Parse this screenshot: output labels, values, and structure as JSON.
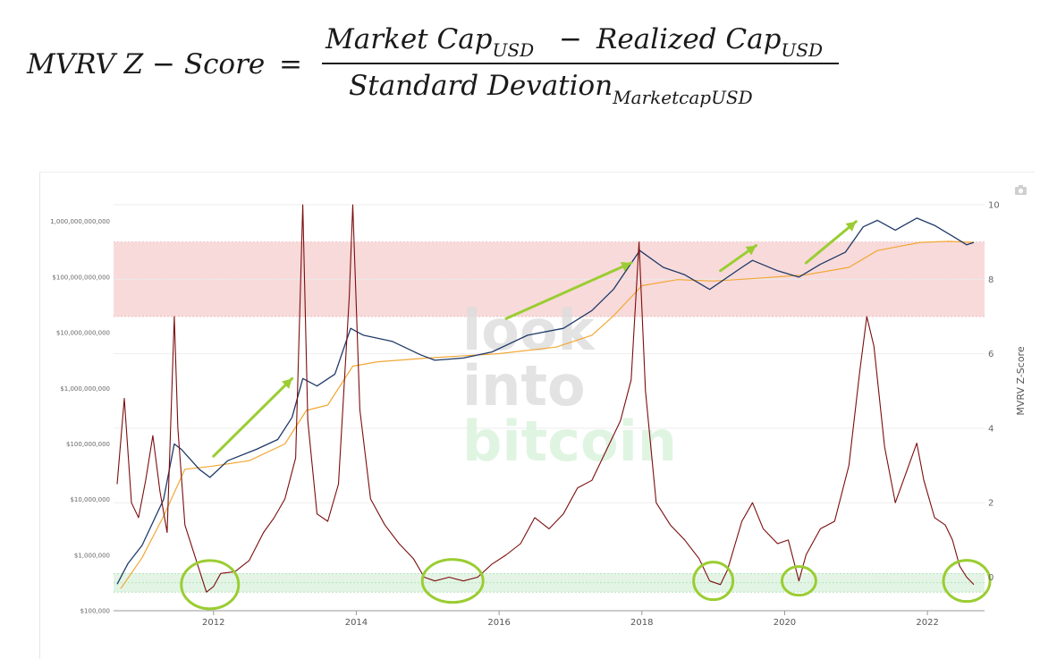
{
  "formula": {
    "lhs": "MVRV Z − Score",
    "equals": "=",
    "num_a": "Market Cap",
    "num_a_sub": "USD",
    "minus": "−",
    "num_b": "Realized Cap",
    "num_b_sub": "USD",
    "den": "Standard Devation",
    "den_sub": "MarketcapUSD"
  },
  "watermark": [
    "look",
    "into",
    "bitcoin"
  ],
  "colors": {
    "market_cap": "#1f3a68",
    "realized_cap": "#f2a735",
    "z_score": "#7b0d0d",
    "red_band": "#f8dada",
    "green_band": "#e2f5e4",
    "annotation": "#9acd32"
  },
  "icons": {
    "camera": "camera-icon"
  },
  "chart_data": {
    "type": "line",
    "title": "",
    "x_ticks": [
      "2012",
      "2014",
      "2016",
      "2018",
      "2020",
      "2022"
    ],
    "x_range": [
      2010.6,
      2022.8
    ],
    "left_axis": {
      "scale": "log",
      "ticks": [
        "1,000,000,000,000",
        "$100,000,000,000",
        "$10,000,000,000",
        "$1,000,000,000",
        "$100,000,000",
        "$10,000,000",
        "$1,000,000",
        "$100,000"
      ],
      "range": [
        100000,
        2000000000000
      ]
    },
    "right_axis": {
      "label": "MVRV Z-Score",
      "ticks": [
        "10",
        "8",
        "6",
        "4",
        "2",
        "0"
      ],
      "range": [
        -0.9,
        10
      ]
    },
    "zones": [
      {
        "name": "red",
        "from": 7,
        "to": 9
      },
      {
        "name": "green",
        "from": -0.4,
        "to": 0.1
      }
    ],
    "series": [
      {
        "key": "market_cap",
        "axis": "left",
        "points": [
          [
            2010.65,
            300000
          ],
          [
            2010.8,
            700000
          ],
          [
            2011.0,
            1500000
          ],
          [
            2011.3,
            10000000
          ],
          [
            2011.45,
            100000000
          ],
          [
            2011.55,
            80000000
          ],
          [
            2011.8,
            35000000
          ],
          [
            2011.95,
            25000000
          ],
          [
            2012.2,
            50000000
          ],
          [
            2012.6,
            80000000
          ],
          [
            2012.9,
            120000000
          ],
          [
            2013.1,
            300000000
          ],
          [
            2013.25,
            1500000000
          ],
          [
            2013.45,
            1100000000
          ],
          [
            2013.7,
            1800000000
          ],
          [
            2013.92,
            12000000000
          ],
          [
            2014.1,
            9000000000
          ],
          [
            2014.5,
            7000000000
          ],
          [
            2014.9,
            4000000000
          ],
          [
            2015.1,
            3200000000
          ],
          [
            2015.5,
            3500000000
          ],
          [
            2015.9,
            4500000000
          ],
          [
            2016.4,
            9000000000
          ],
          [
            2016.9,
            12000000000
          ],
          [
            2017.3,
            25000000000
          ],
          [
            2017.6,
            60000000000
          ],
          [
            2017.97,
            300000000000
          ],
          [
            2018.3,
            150000000000
          ],
          [
            2018.6,
            110000000000
          ],
          [
            2018.95,
            60000000000
          ],
          [
            2019.4,
            150000000000
          ],
          [
            2019.55,
            200000000000
          ],
          [
            2019.9,
            130000000000
          ],
          [
            2020.2,
            100000000000
          ],
          [
            2020.5,
            170000000000
          ],
          [
            2020.85,
            280000000000
          ],
          [
            2021.1,
            800000000000
          ],
          [
            2021.3,
            1050000000000
          ],
          [
            2021.55,
            700000000000
          ],
          [
            2021.85,
            1150000000000
          ],
          [
            2022.1,
            850000000000
          ],
          [
            2022.4,
            500000000000
          ],
          [
            2022.55,
            380000000000
          ],
          [
            2022.65,
            420000000000
          ]
        ]
      },
      {
        "key": "realized_cap",
        "axis": "left",
        "points": [
          [
            2010.7,
            250000
          ],
          [
            2011.0,
            900000
          ],
          [
            2011.3,
            5000000
          ],
          [
            2011.6,
            35000000
          ],
          [
            2012.0,
            40000000
          ],
          [
            2012.5,
            50000000
          ],
          [
            2013.0,
            100000000
          ],
          [
            2013.3,
            400000000
          ],
          [
            2013.6,
            500000000
          ],
          [
            2013.95,
            2500000000
          ],
          [
            2014.3,
            3000000000
          ],
          [
            2015.0,
            3500000000
          ],
          [
            2016.0,
            4200000000
          ],
          [
            2016.8,
            5500000000
          ],
          [
            2017.3,
            9000000000
          ],
          [
            2017.6,
            20000000000
          ],
          [
            2018.0,
            70000000000
          ],
          [
            2018.5,
            90000000000
          ],
          [
            2019.0,
            85000000000
          ],
          [
            2019.6,
            95000000000
          ],
          [
            2020.3,
            110000000000
          ],
          [
            2020.9,
            150000000000
          ],
          [
            2021.3,
            300000000000
          ],
          [
            2021.9,
            420000000000
          ],
          [
            2022.3,
            440000000000
          ],
          [
            2022.65,
            420000000000
          ]
        ]
      },
      {
        "key": "z_score",
        "axis": "right",
        "points": [
          [
            2010.65,
            2.5
          ],
          [
            2010.75,
            4.8
          ],
          [
            2010.85,
            2.0
          ],
          [
            2010.95,
            1.6
          ],
          [
            2011.05,
            2.6
          ],
          [
            2011.15,
            3.8
          ],
          [
            2011.25,
            2.3
          ],
          [
            2011.35,
            1.2
          ],
          [
            2011.45,
            7.0
          ],
          [
            2011.5,
            4.0
          ],
          [
            2011.6,
            1.4
          ],
          [
            2011.75,
            0.5
          ],
          [
            2011.9,
            -0.4
          ],
          [
            2012.0,
            -0.25
          ],
          [
            2012.1,
            0.1
          ],
          [
            2012.3,
            0.15
          ],
          [
            2012.5,
            0.45
          ],
          [
            2012.7,
            1.2
          ],
          [
            2012.85,
            1.6
          ],
          [
            2013.0,
            2.1
          ],
          [
            2013.15,
            3.2
          ],
          [
            2013.25,
            10.0
          ],
          [
            2013.32,
            4.2
          ],
          [
            2013.45,
            1.7
          ],
          [
            2013.6,
            1.5
          ],
          [
            2013.75,
            2.5
          ],
          [
            2013.9,
            7.5
          ],
          [
            2013.95,
            10.0
          ],
          [
            2014.05,
            4.5
          ],
          [
            2014.2,
            2.1
          ],
          [
            2014.4,
            1.4
          ],
          [
            2014.6,
            0.9
          ],
          [
            2014.8,
            0.5
          ],
          [
            2014.95,
            0.0
          ],
          [
            2015.1,
            -0.1
          ],
          [
            2015.3,
            0.0
          ],
          [
            2015.5,
            -0.1
          ],
          [
            2015.7,
            0.0
          ],
          [
            2015.9,
            0.35
          ],
          [
            2016.1,
            0.6
          ],
          [
            2016.3,
            0.9
          ],
          [
            2016.5,
            1.6
          ],
          [
            2016.7,
            1.3
          ],
          [
            2016.9,
            1.7
          ],
          [
            2017.1,
            2.4
          ],
          [
            2017.3,
            2.6
          ],
          [
            2017.5,
            3.4
          ],
          [
            2017.7,
            4.2
          ],
          [
            2017.85,
            5.3
          ],
          [
            2017.96,
            9.0
          ],
          [
            2018.05,
            5.0
          ],
          [
            2018.2,
            2.0
          ],
          [
            2018.4,
            1.4
          ],
          [
            2018.6,
            1.0
          ],
          [
            2018.8,
            0.5
          ],
          [
            2018.95,
            -0.1
          ],
          [
            2019.1,
            -0.2
          ],
          [
            2019.2,
            0.2
          ],
          [
            2019.4,
            1.5
          ],
          [
            2019.55,
            2.0
          ],
          [
            2019.7,
            1.3
          ],
          [
            2019.9,
            0.9
          ],
          [
            2020.05,
            1.0
          ],
          [
            2020.2,
            -0.1
          ],
          [
            2020.3,
            0.6
          ],
          [
            2020.5,
            1.3
          ],
          [
            2020.7,
            1.5
          ],
          [
            2020.9,
            3.0
          ],
          [
            2021.05,
            5.5
          ],
          [
            2021.15,
            7.0
          ],
          [
            2021.25,
            6.2
          ],
          [
            2021.4,
            3.5
          ],
          [
            2021.55,
            2.0
          ],
          [
            2021.7,
            2.8
          ],
          [
            2021.85,
            3.6
          ],
          [
            2021.95,
            2.6
          ],
          [
            2022.1,
            1.6
          ],
          [
            2022.25,
            1.4
          ],
          [
            2022.35,
            1.0
          ],
          [
            2022.45,
            0.3
          ],
          [
            2022.55,
            0.0
          ],
          [
            2022.65,
            -0.2
          ]
        ]
      }
    ]
  }
}
